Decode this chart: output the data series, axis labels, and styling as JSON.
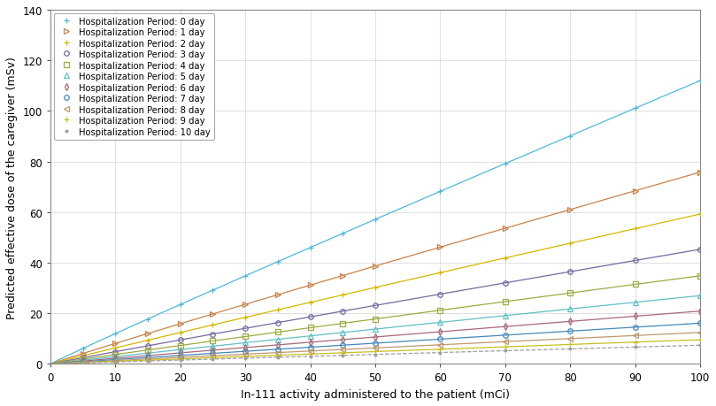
{
  "xlabel": "In-111 activity administered to the patient (mCi)",
  "ylabel": "Predicted effective dose of the caregiver (mSv)",
  "xlim": [
    0,
    100
  ],
  "ylim": [
    0,
    140
  ],
  "xticks": [
    0,
    10,
    20,
    30,
    40,
    50,
    60,
    70,
    80,
    90,
    100
  ],
  "yticks": [
    0,
    20,
    40,
    60,
    80,
    100,
    120,
    140
  ],
  "series": [
    {
      "label": "Hospitalization Period: 0 day",
      "color": "#4eb8d8",
      "marker": "+",
      "linestyle": "-",
      "coeff": 1.285,
      "power": 0.97
    },
    {
      "label": "Hospitalization Period: 1 day",
      "color": "#c8824a",
      "marker": ">",
      "linestyle": "-",
      "coeff": 0.87,
      "power": 0.97
    },
    {
      "label": "Hospitalization Period: 2 day",
      "color": "#d4b800",
      "marker": "+",
      "linestyle": "-",
      "coeff": 0.68,
      "power": 0.97
    },
    {
      "label": "Hospitalization Period: 3 day",
      "color": "#7868a0",
      "marker": "o",
      "linestyle": "-",
      "coeff": 0.52,
      "power": 0.97
    },
    {
      "label": "Hospitalization Period: 4 day",
      "color": "#9caa40",
      "marker": "s",
      "linestyle": "-",
      "coeff": 0.4,
      "power": 0.97
    },
    {
      "label": "Hospitalization Period: 5 day",
      "color": "#60c0c8",
      "marker": "^",
      "linestyle": "-",
      "coeff": 0.31,
      "power": 0.97
    },
    {
      "label": "Hospitalization Period: 6 day",
      "color": "#a86878",
      "marker": "d",
      "linestyle": "-",
      "coeff": 0.24,
      "power": 0.97
    },
    {
      "label": "Hospitalization Period: 7 day",
      "color": "#4488b8",
      "marker": "o",
      "linestyle": "-",
      "coeff": 0.185,
      "power": 0.97
    },
    {
      "label": "Hospitalization Period: 8 day",
      "color": "#c09870",
      "marker": "<",
      "linestyle": "-",
      "coeff": 0.143,
      "power": 0.97
    },
    {
      "label": "Hospitalization Period: 9 day",
      "color": "#c8c020",
      "marker": "+",
      "linestyle": "-",
      "coeff": 0.11,
      "power": 0.97
    },
    {
      "label": "Hospitalization Period: 10 day",
      "color": "#a0a0a0",
      "marker": ".",
      "linestyle": "--",
      "coeff": 0.085,
      "power": 0.97
    }
  ],
  "x_points": [
    5,
    10,
    15,
    20,
    25,
    30,
    35,
    40,
    45,
    50,
    60,
    70,
    80,
    90,
    100
  ],
  "background_color": "#ffffff",
  "grid_color": "#d4d4d4",
  "figsize": [
    8.09,
    4.6
  ],
  "dpi": 100
}
